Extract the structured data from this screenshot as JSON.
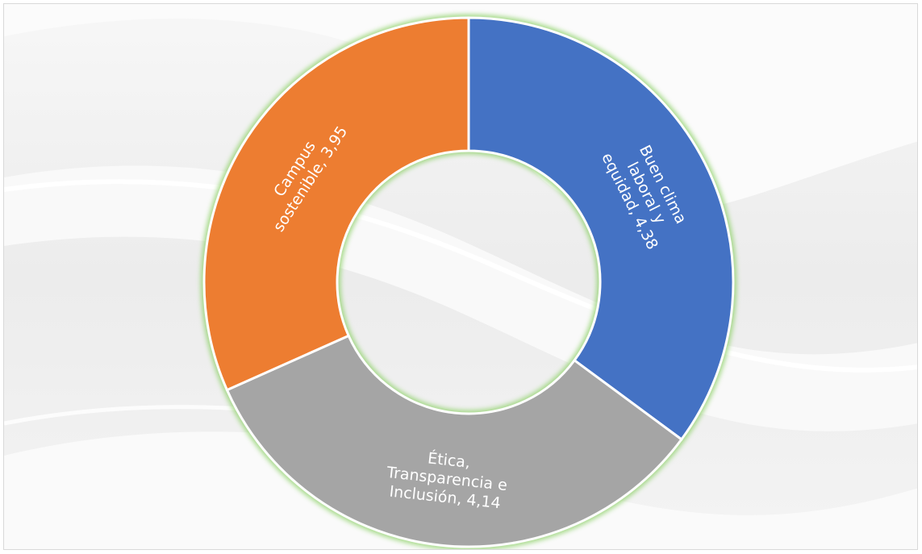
{
  "chart_data": {
    "type": "pie",
    "variant": "doughnut",
    "title": "",
    "series": [
      {
        "values": [
          4.38,
          4.14,
          3.95
        ],
        "labels": [
          "Buen clima laboral y equidad",
          "Ética, Transparencia e Inclusión",
          "Campus sostenible"
        ]
      }
    ],
    "slices": [
      {
        "name": "Buen clima laboral y equidad",
        "value": 4.38,
        "value_text": "4,38",
        "color": "#4472c4",
        "label_lines": [
          "Buen clima",
          "laboral y",
          "equidad, 4,38"
        ]
      },
      {
        "name": "Ética, Transparencia e Inclusión",
        "value": 4.14,
        "value_text": "4,14",
        "color": "#a5a5a5",
        "label_lines": [
          "Ética,",
          "Transparencia e",
          "Inclusión, 4,14"
        ]
      },
      {
        "name": "Campus sostenible",
        "value": 3.95,
        "value_text": "3,95",
        "color": "#ed7d31",
        "label_lines": [
          "Campus",
          "sostenible, 3,95"
        ]
      }
    ],
    "legend": "none",
    "start_angle_deg": 0,
    "direction": "clockwise",
    "glow_color": "#8fd16a"
  }
}
